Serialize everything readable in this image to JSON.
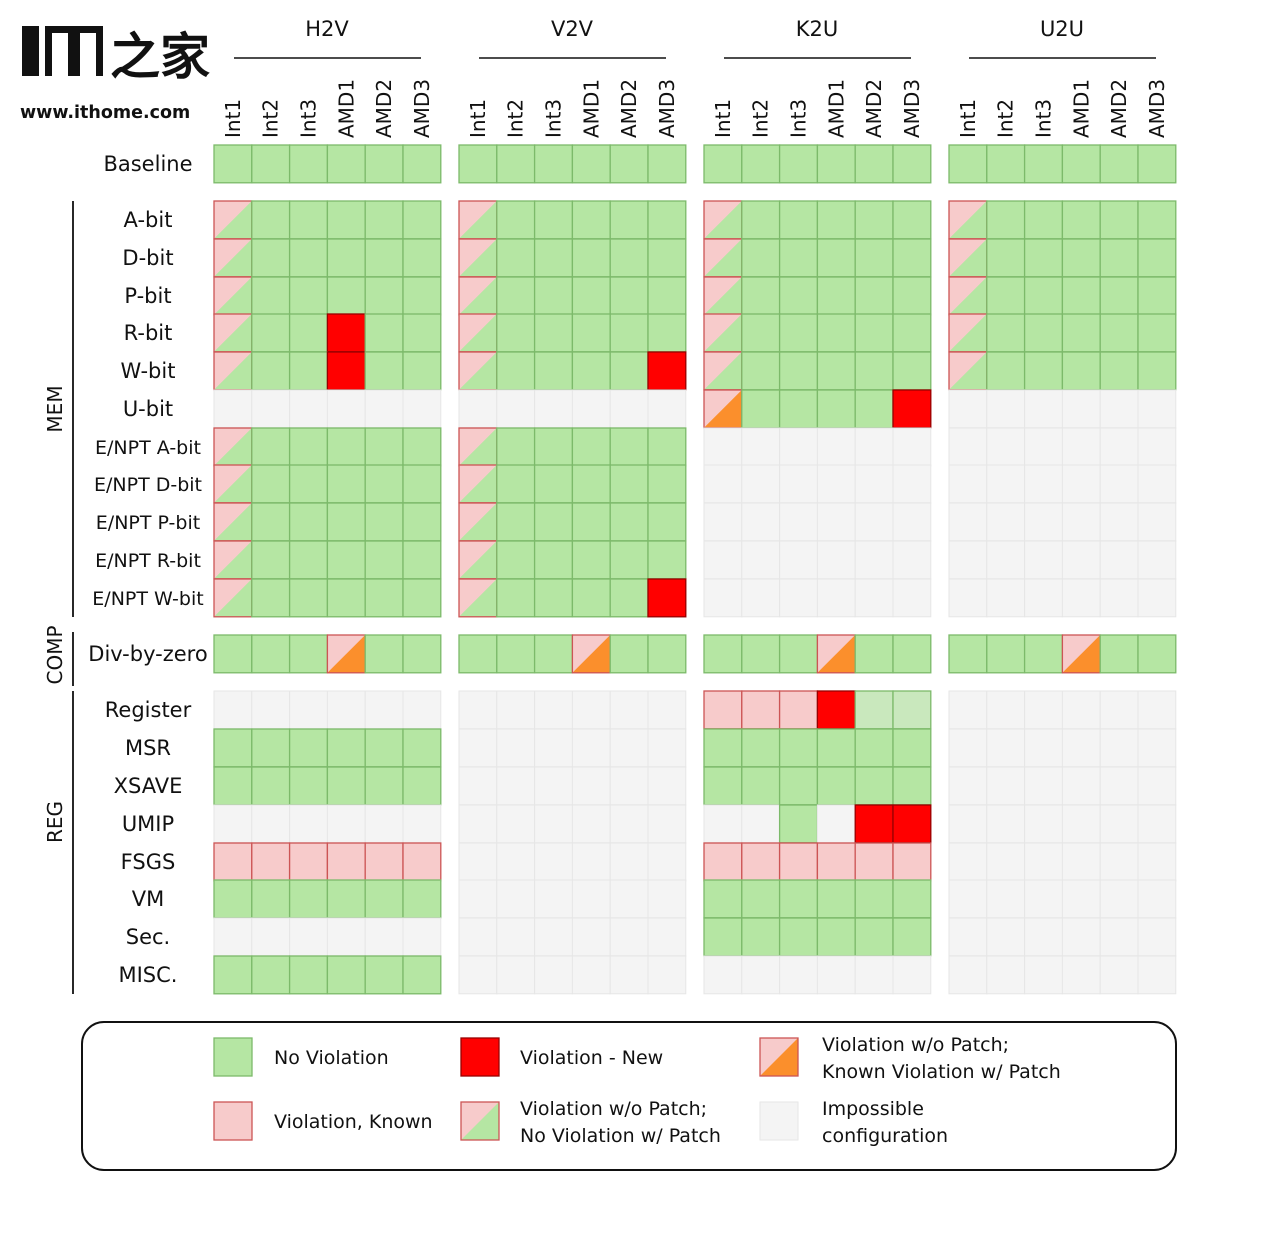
{
  "logo": {
    "mark": "IT之家",
    "url": "www.ithome.com"
  },
  "chart_data": {
    "type": "heatmap",
    "groups": [
      "H2V",
      "V2V",
      "K2U",
      "U2U"
    ],
    "columns": [
      "Int1",
      "Int2",
      "Int3",
      "AMD1",
      "AMD2",
      "AMD3"
    ],
    "categories": [
      {
        "name": "",
        "rows": [
          "Baseline"
        ]
      },
      {
        "name": "MEM",
        "rows": [
          "A-bit",
          "D-bit",
          "P-bit",
          "R-bit",
          "W-bit",
          "U-bit",
          "E/NPT A-bit",
          "E/NPT D-bit",
          "E/NPT P-bit",
          "E/NPT R-bit",
          "E/NPT W-bit"
        ]
      },
      {
        "name": "COMP",
        "rows": [
          "Div-by-zero"
        ]
      },
      {
        "name": "REG",
        "rows": [
          "Register",
          "MSR",
          "XSAVE",
          "UMIP",
          "FSGS",
          "VM",
          "Sec.",
          "MISC."
        ]
      }
    ],
    "status_codes": {
      "G": "No Violation",
      "R": "Violation - New",
      "O": "Violation w/o Patch; Known Violation w/ Patch",
      "P": "Violation, Known",
      "H": "Violation w/o Patch; No Violation w/ Patch",
      "X": "Impossible configuration",
      "L": "No Violation (light)"
    },
    "cells": {
      "H2V": {
        "Baseline": "GGGGGG",
        "A-bit": "HGGGGG",
        "D-bit": "HGGGGG",
        "P-bit": "HGGGGG",
        "R-bit": "HGGRGG",
        "W-bit": "HGGRGG",
        "U-bit": "XXXXXX",
        "E/NPT A-bit": "HGGGGG",
        "E/NPT D-bit": "HGGGGG",
        "E/NPT P-bit": "HGGGGG",
        "E/NPT R-bit": "HGGGGG",
        "E/NPT W-bit": "HGGGGG",
        "Div-by-zero": "GGGOGG",
        "Register": "XXXXXX",
        "MSR": "GGGGGG",
        "XSAVE": "GGGGGG",
        "UMIP": "XXXXXX",
        "FSGS": "PPPPPP",
        "VM": "GGGGGG",
        "Sec.": "XXXXXX",
        "MISC.": "GGGGGG"
      },
      "V2V": {
        "Baseline": "GGGGGG",
        "A-bit": "HGGGGG",
        "D-bit": "HGGGGG",
        "P-bit": "HGGGGG",
        "R-bit": "HGGGGG",
        "W-bit": "HGGGGR",
        "U-bit": "XXXXXX",
        "E/NPT A-bit": "HGGGGG",
        "E/NPT D-bit": "HGGGGG",
        "E/NPT P-bit": "HGGGGG",
        "E/NPT R-bit": "HGGGGG",
        "E/NPT W-bit": "HGGGGR",
        "Div-by-zero": "GGGOGG",
        "Register": "XXXXXX",
        "MSR": "XXXXXX",
        "XSAVE": "XXXXXX",
        "UMIP": "XXXXXX",
        "FSGS": "XXXXXX",
        "VM": "XXXXXX",
        "Sec.": "XXXXXX",
        "MISC.": "XXXXXX"
      },
      "K2U": {
        "Baseline": "GGGGGG",
        "A-bit": "HGGGGG",
        "D-bit": "HGGGGG",
        "P-bit": "HGGGGG",
        "R-bit": "HGGGGG",
        "W-bit": "HGGGGG",
        "U-bit": "OGGGGR",
        "E/NPT A-bit": "XXXXXX",
        "E/NPT D-bit": "XXXXXX",
        "E/NPT P-bit": "XXXXXX",
        "E/NPT R-bit": "XXXXXX",
        "E/NPT W-bit": "XXXXXX",
        "Div-by-zero": "GGGOGG",
        "Register": "PPPRLL",
        "MSR": "GGGGGG",
        "XSAVE": "GGGGGG",
        "UMIP": "XXGXRR",
        "FSGS": "PPPPPP",
        "VM": "GGGGGG",
        "Sec.": "GGGGGG",
        "MISC.": "XXXXXX"
      },
      "U2U": {
        "Baseline": "GGGGGG",
        "A-bit": "HGGGGG",
        "D-bit": "HGGGGG",
        "P-bit": "HGGGGG",
        "R-bit": "HGGGGG",
        "W-bit": "HGGGGG",
        "U-bit": "XXXXXX",
        "E/NPT A-bit": "XXXXXX",
        "E/NPT D-bit": "XXXXXX",
        "E/NPT P-bit": "XXXXXX",
        "E/NPT R-bit": "XXXXXX",
        "E/NPT W-bit": "XXXXXX",
        "Div-by-zero": "GGGOGG",
        "Register": "XXXXXX",
        "MSR": "XXXXXX",
        "XSAVE": "XXXXXX",
        "UMIP": "XXXXXX",
        "FSGS": "XXXXXX",
        "VM": "XXXXXX",
        "Sec.": "XXXXXX",
        "MISC.": "XXXXXX"
      }
    },
    "legend": [
      {
        "code": "G",
        "lines": [
          "No Violation"
        ]
      },
      {
        "code": "R",
        "lines": [
          "Violation - New"
        ]
      },
      {
        "code": "O",
        "lines": [
          "Violation w/o Patch;",
          "Known Violation w/ Patch"
        ]
      },
      {
        "code": "P",
        "lines": [
          "Violation, Known"
        ]
      },
      {
        "code": "H",
        "lines": [
          "Violation w/o Patch;",
          "No Violation w/ Patch"
        ]
      },
      {
        "code": "X",
        "lines": [
          "Impossible",
          "configuration"
        ]
      }
    ],
    "colors": {
      "green": "#b5e6a3",
      "green_edge": "#7cba6a",
      "light_green": "#c9e8bd",
      "red": "#ff0000",
      "red_edge": "#990000",
      "pink": "#f7cbcb",
      "pink_edge": "#cc5555",
      "orange": "#fb8f2c",
      "gray": "#f4f4f4",
      "gray_edge": "#e6e6e6"
    }
  }
}
